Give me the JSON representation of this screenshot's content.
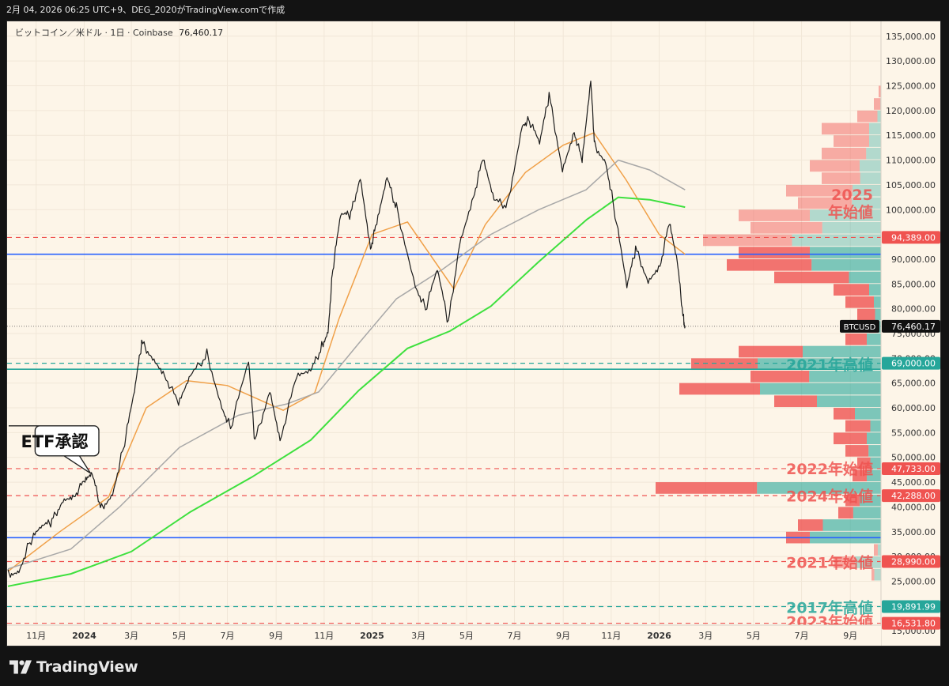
{
  "header": {
    "caption": "2月 04, 2026 06:25 UTC+9、DEG_2020がTradingView.comで作成"
  },
  "symbol": {
    "label": "ビットコイン／米ドル · 1日 · Coinbase",
    "price": "76,460.17"
  },
  "footer": {
    "brand": "TradingView"
  },
  "colors": {
    "background": "#fdf5e8",
    "up": "#26a69a",
    "down": "#ef5350",
    "ma_fast": "#f0a048",
    "ma_mid": "#a8a8a8",
    "ma_slow": "#3ee03e",
    "support_line": "#2962ff"
  },
  "chart_data": {
    "type": "line",
    "title": "",
    "xlabel": "",
    "ylabel": "",
    "symbol": "BTCUSD",
    "last_price": 76460.17,
    "last_price_label": "76,460.17",
    "ylim": [
      12000,
      138000
    ],
    "x_range": [
      "2023-09-25",
      "2026-10-10"
    ],
    "y_ticks": [
      15000,
      20000,
      25000,
      30000,
      35000,
      40000,
      45000,
      50000,
      55000,
      60000,
      65000,
      70000,
      75000,
      80000,
      85000,
      90000,
      95000,
      100000,
      105000,
      110000,
      115000,
      120000,
      125000,
      130000,
      135000
    ],
    "x_ticks": [
      {
        "date": "2023-11-01",
        "label": "11月",
        "bold": false
      },
      {
        "date": "2024-01-01",
        "label": "2024",
        "bold": true
      },
      {
        "date": "2024-03-01",
        "label": "3月",
        "bold": false
      },
      {
        "date": "2024-05-01",
        "label": "5月",
        "bold": false
      },
      {
        "date": "2024-07-01",
        "label": "7月",
        "bold": false
      },
      {
        "date": "2024-09-01",
        "label": "9月",
        "bold": false
      },
      {
        "date": "2024-11-01",
        "label": "11月",
        "bold": false
      },
      {
        "date": "2025-01-01",
        "label": "2025",
        "bold": true
      },
      {
        "date": "2025-03-01",
        "label": "3月",
        "bold": false
      },
      {
        "date": "2025-05-01",
        "label": "5月",
        "bold": false
      },
      {
        "date": "2025-07-01",
        "label": "7月",
        "bold": false
      },
      {
        "date": "2025-09-01",
        "label": "9月",
        "bold": false
      },
      {
        "date": "2025-11-01",
        "label": "11月",
        "bold": false
      },
      {
        "date": "2026-01-01",
        "label": "2026",
        "bold": true
      },
      {
        "date": "2026-03-01",
        "label": "3月",
        "bold": false
      },
      {
        "date": "2026-05-01",
        "label": "5月",
        "bold": false
      },
      {
        "date": "2026-07-01",
        "label": "7月",
        "bold": false
      },
      {
        "date": "2026-09-01",
        "label": "9月",
        "bold": false
      }
    ],
    "price_series": [
      [
        "2023-09-26",
        26500
      ],
      [
        "2023-10-10",
        27400
      ],
      [
        "2023-10-24",
        33000
      ],
      [
        "2023-11-07",
        35500
      ],
      [
        "2023-11-21",
        37000
      ],
      [
        "2023-12-05",
        41800
      ],
      [
        "2023-12-19",
        42500
      ],
      [
        "2024-01-02",
        45000
      ],
      [
        "2024-01-11",
        46200
      ],
      [
        "2024-01-23",
        39800
      ],
      [
        "2024-02-06",
        43000
      ],
      [
        "2024-02-20",
        52000
      ],
      [
        "2024-03-05",
        63000
      ],
      [
        "2024-03-14",
        73000
      ],
      [
        "2024-03-28",
        70500
      ],
      [
        "2024-04-12",
        67000
      ],
      [
        "2024-04-30",
        60500
      ],
      [
        "2024-05-15",
        66000
      ],
      [
        "2024-06-05",
        71000
      ],
      [
        "2024-06-24",
        60500
      ],
      [
        "2024-07-05",
        56000
      ],
      [
        "2024-07-28",
        69000
      ],
      [
        "2024-08-05",
        53000
      ],
      [
        "2024-08-24",
        64000
      ],
      [
        "2024-09-06",
        53800
      ],
      [
        "2024-09-27",
        66000
      ],
      [
        "2024-10-15",
        67000
      ],
      [
        "2024-10-29",
        72500
      ],
      [
        "2024-11-06",
        75800
      ],
      [
        "2024-11-12",
        88000
      ],
      [
        "2024-11-22",
        98500
      ],
      [
        "2024-12-05",
        99000
      ],
      [
        "2024-12-17",
        107000
      ],
      [
        "2024-12-30",
        92500
      ],
      [
        "2025-01-07",
        97000
      ],
      [
        "2025-01-20",
        106000
      ],
      [
        "2025-02-01",
        100500
      ],
      [
        "2025-02-25",
        85000
      ],
      [
        "2025-03-10",
        80000
      ],
      [
        "2025-03-25",
        87500
      ],
      [
        "2025-04-08",
        77000
      ],
      [
        "2025-04-22",
        93500
      ],
      [
        "2025-05-10",
        103000
      ],
      [
        "2025-05-22",
        110000
      ],
      [
        "2025-06-05",
        101500
      ],
      [
        "2025-06-22",
        101000
      ],
      [
        "2025-07-11",
        117500
      ],
      [
        "2025-07-20",
        118000
      ],
      [
        "2025-08-02",
        113000
      ],
      [
        "2025-08-14",
        123000
      ],
      [
        "2025-08-31",
        108500
      ],
      [
        "2025-09-15",
        116000
      ],
      [
        "2025-09-25",
        109500
      ],
      [
        "2025-10-06",
        125500
      ],
      [
        "2025-10-11",
        113000
      ],
      [
        "2025-10-25",
        110000
      ],
      [
        "2025-11-04",
        101000
      ],
      [
        "2025-11-21",
        84000
      ],
      [
        "2025-12-02",
        92000
      ],
      [
        "2025-12-18",
        86000
      ],
      [
        "2026-01-02",
        89000
      ],
      [
        "2026-01-14",
        97000
      ],
      [
        "2026-01-24",
        89000
      ],
      [
        "2026-02-01",
        78000
      ],
      [
        "2026-02-03",
        76460
      ]
    ],
    "moving_averages": [
      {
        "color": "ma_fast",
        "points": [
          [
            "2023-09-26",
            27000
          ],
          [
            "2023-12-01",
            35000
          ],
          [
            "2024-02-01",
            42000
          ],
          [
            "2024-03-20",
            60000
          ],
          [
            "2024-05-10",
            65500
          ],
          [
            "2024-07-01",
            64500
          ],
          [
            "2024-09-10",
            59500
          ],
          [
            "2024-10-20",
            63000
          ],
          [
            "2024-11-20",
            78000
          ],
          [
            "2025-01-01",
            95000
          ],
          [
            "2025-02-15",
            97500
          ],
          [
            "2025-04-15",
            84000
          ],
          [
            "2025-05-25",
            97000
          ],
          [
            "2025-07-15",
            107500
          ],
          [
            "2025-09-01",
            113000
          ],
          [
            "2025-10-10",
            115500
          ],
          [
            "2025-11-20",
            106000
          ],
          [
            "2026-01-01",
            95000
          ],
          [
            "2026-02-03",
            91000
          ]
        ]
      },
      {
        "color": "ma_mid",
        "points": [
          [
            "2023-09-26",
            27500
          ],
          [
            "2023-12-15",
            31500
          ],
          [
            "2024-02-15",
            40000
          ],
          [
            "2024-05-01",
            52000
          ],
          [
            "2024-07-15",
            58500
          ],
          [
            "2024-09-15",
            60800
          ],
          [
            "2024-10-25",
            63200
          ],
          [
            "2024-12-15",
            73000
          ],
          [
            "2025-02-01",
            82000
          ],
          [
            "2025-04-01",
            88000
          ],
          [
            "2025-06-01",
            95000
          ],
          [
            "2025-08-01",
            100000
          ],
          [
            "2025-09-30",
            104000
          ],
          [
            "2025-11-10",
            110000
          ],
          [
            "2025-12-20",
            108000
          ],
          [
            "2026-02-03",
            104000
          ]
        ]
      },
      {
        "color": "ma_slow",
        "points": [
          [
            "2023-09-26",
            24000
          ],
          [
            "2023-12-15",
            26500
          ],
          [
            "2024-03-01",
            31000
          ],
          [
            "2024-05-15",
            39000
          ],
          [
            "2024-08-01",
            46000
          ],
          [
            "2024-10-15",
            53500
          ],
          [
            "2024-12-15",
            63500
          ],
          [
            "2025-02-15",
            72000
          ],
          [
            "2025-04-10",
            75500
          ],
          [
            "2025-06-01",
            80500
          ],
          [
            "2025-08-01",
            89500
          ],
          [
            "2025-10-01",
            98000
          ],
          [
            "2025-11-10",
            102500
          ],
          [
            "2025-12-20",
            102000
          ],
          [
            "2026-02-03",
            100500
          ]
        ]
      }
    ],
    "levels": [
      {
        "value": 94389,
        "label": "94,389.00",
        "style": "dashed",
        "color": "down"
      },
      {
        "value": 91000,
        "label": "",
        "style": "solid",
        "color": "support_line"
      },
      {
        "value": 69000,
        "label": "69,000.00",
        "style": "dashed",
        "color": "up"
      },
      {
        "value": 67800,
        "label": "",
        "style": "solid",
        "color": "up"
      },
      {
        "value": 47733,
        "label": "47,733.00",
        "style": "dashed",
        "color": "down"
      },
      {
        "value": 42288,
        "label": "42,288.00",
        "style": "dashed",
        "color": "down"
      },
      {
        "value": 33800,
        "label": "",
        "style": "solid",
        "color": "support_line"
      },
      {
        "value": 28990,
        "label": "28,990.00",
        "style": "dashed",
        "color": "down"
      },
      {
        "value": 19891.99,
        "label": "19,891.99",
        "style": "dashed",
        "color": "up"
      },
      {
        "value": 16531.8,
        "label": "16,531.80",
        "style": "dashed",
        "color": "down"
      }
    ],
    "annotations": [
      {
        "lines": [
          "2025",
          "年始値"
        ],
        "value": 99700,
        "color": "down"
      },
      {
        "lines": [
          "2021年高値"
        ],
        "value": 68900,
        "color": "up"
      },
      {
        "lines": [
          "2022年始値"
        ],
        "value": 47900,
        "color": "down"
      },
      {
        "lines": [
          "2024年始値"
        ],
        "value": 42400,
        "color": "down"
      },
      {
        "lines": [
          "2021年始値"
        ],
        "value": 29000,
        "color": "down"
      },
      {
        "lines": [
          "2017年高値"
        ],
        "value": 19900,
        "color": "up"
      },
      {
        "lines": [
          "2023年始値"
        ],
        "value": 17000,
        "color": "down"
      }
    ],
    "callout": {
      "text": "ETF承認",
      "date": "2024-01-11",
      "value": 46800
    },
    "volume_profile": {
      "bin": 2500,
      "bins": [
        [
          26250,
          0.04,
          0.7,
          "light"
        ],
        [
          28750,
          0.2,
          0.55,
          "light"
        ],
        [
          31250,
          0.03,
          0.45,
          "light"
        ],
        [
          33750,
          0.4,
          0.75
        ],
        [
          36250,
          0.35,
          0.7
        ],
        [
          38750,
          0.18,
          0.65
        ],
        [
          41250,
          0.15,
          0.6
        ],
        [
          43750,
          0.95,
          0.55
        ],
        [
          46250,
          0.12,
          0.5
        ],
        [
          48750,
          0.1,
          0.45
        ],
        [
          51250,
          0.15,
          0.35
        ],
        [
          53750,
          0.2,
          0.3
        ],
        [
          56250,
          0.15,
          0.3
        ],
        [
          58750,
          0.2,
          0.55
        ],
        [
          61250,
          0.45,
          0.6
        ],
        [
          63750,
          0.85,
          0.6
        ],
        [
          66250,
          0.55,
          0.55
        ],
        [
          68750,
          0.8,
          0.65
        ],
        [
          71250,
          0.6,
          0.55
        ],
        [
          73750,
          0.15,
          0.4
        ],
        [
          76250,
          0.05,
          0.4
        ],
        [
          78750,
          0.1,
          0.25
        ],
        [
          81250,
          0.15,
          0.2
        ],
        [
          83750,
          0.2,
          0.25
        ],
        [
          86250,
          0.45,
          0.3
        ],
        [
          88750,
          0.65,
          0.45
        ],
        [
          91250,
          0.6,
          0.5
        ],
        [
          93750,
          0.75,
          0.5,
          "light"
        ],
        [
          96250,
          0.55,
          0.45,
          "light"
        ],
        [
          98750,
          0.6,
          0.5,
          "light"
        ],
        [
          101250,
          0.35,
          0.35,
          "light"
        ],
        [
          103750,
          0.4,
          0.3,
          "light"
        ],
        [
          106250,
          0.25,
          0.35,
          "light"
        ],
        [
          108750,
          0.3,
          0.3,
          "light"
        ],
        [
          111250,
          0.25,
          0.25,
          "light"
        ],
        [
          113750,
          0.2,
          0.25,
          "light"
        ],
        [
          116250,
          0.25,
          0.2,
          "light"
        ],
        [
          118750,
          0.1,
          0.15,
          "light"
        ],
        [
          121250,
          0.03,
          0.08,
          "light"
        ],
        [
          123750,
          0.01,
          0.03,
          "light"
        ]
      ]
    }
  }
}
